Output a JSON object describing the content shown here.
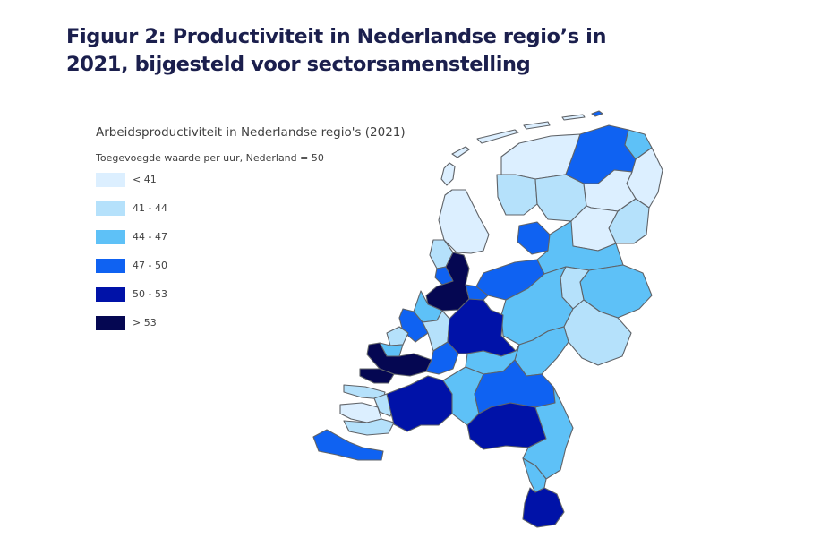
{
  "figure_title": "Figuur 2: Productiviteit in Nederlandse regio’s in 2021, bijgesteld voor sectorsamenstelling",
  "map": {
    "title": "Arbeidsproductiviteit in Nederlandse regio's (2021)",
    "subtitle": "Toegevoegde waarde per uur, Nederland = 50",
    "legend": [
      {
        "label": "< 41",
        "color": "#dcefff"
      },
      {
        "label": "41 - 44",
        "color": "#b5e1fb"
      },
      {
        "label": "44 - 47",
        "color": "#5ec1f7"
      },
      {
        "label": "47 - 50",
        "color": "#0f62f2"
      },
      {
        "label": "50 - 53",
        "color": "#0012a8"
      },
      {
        "label": "> 53",
        "color": "#050752"
      }
    ]
  }
}
